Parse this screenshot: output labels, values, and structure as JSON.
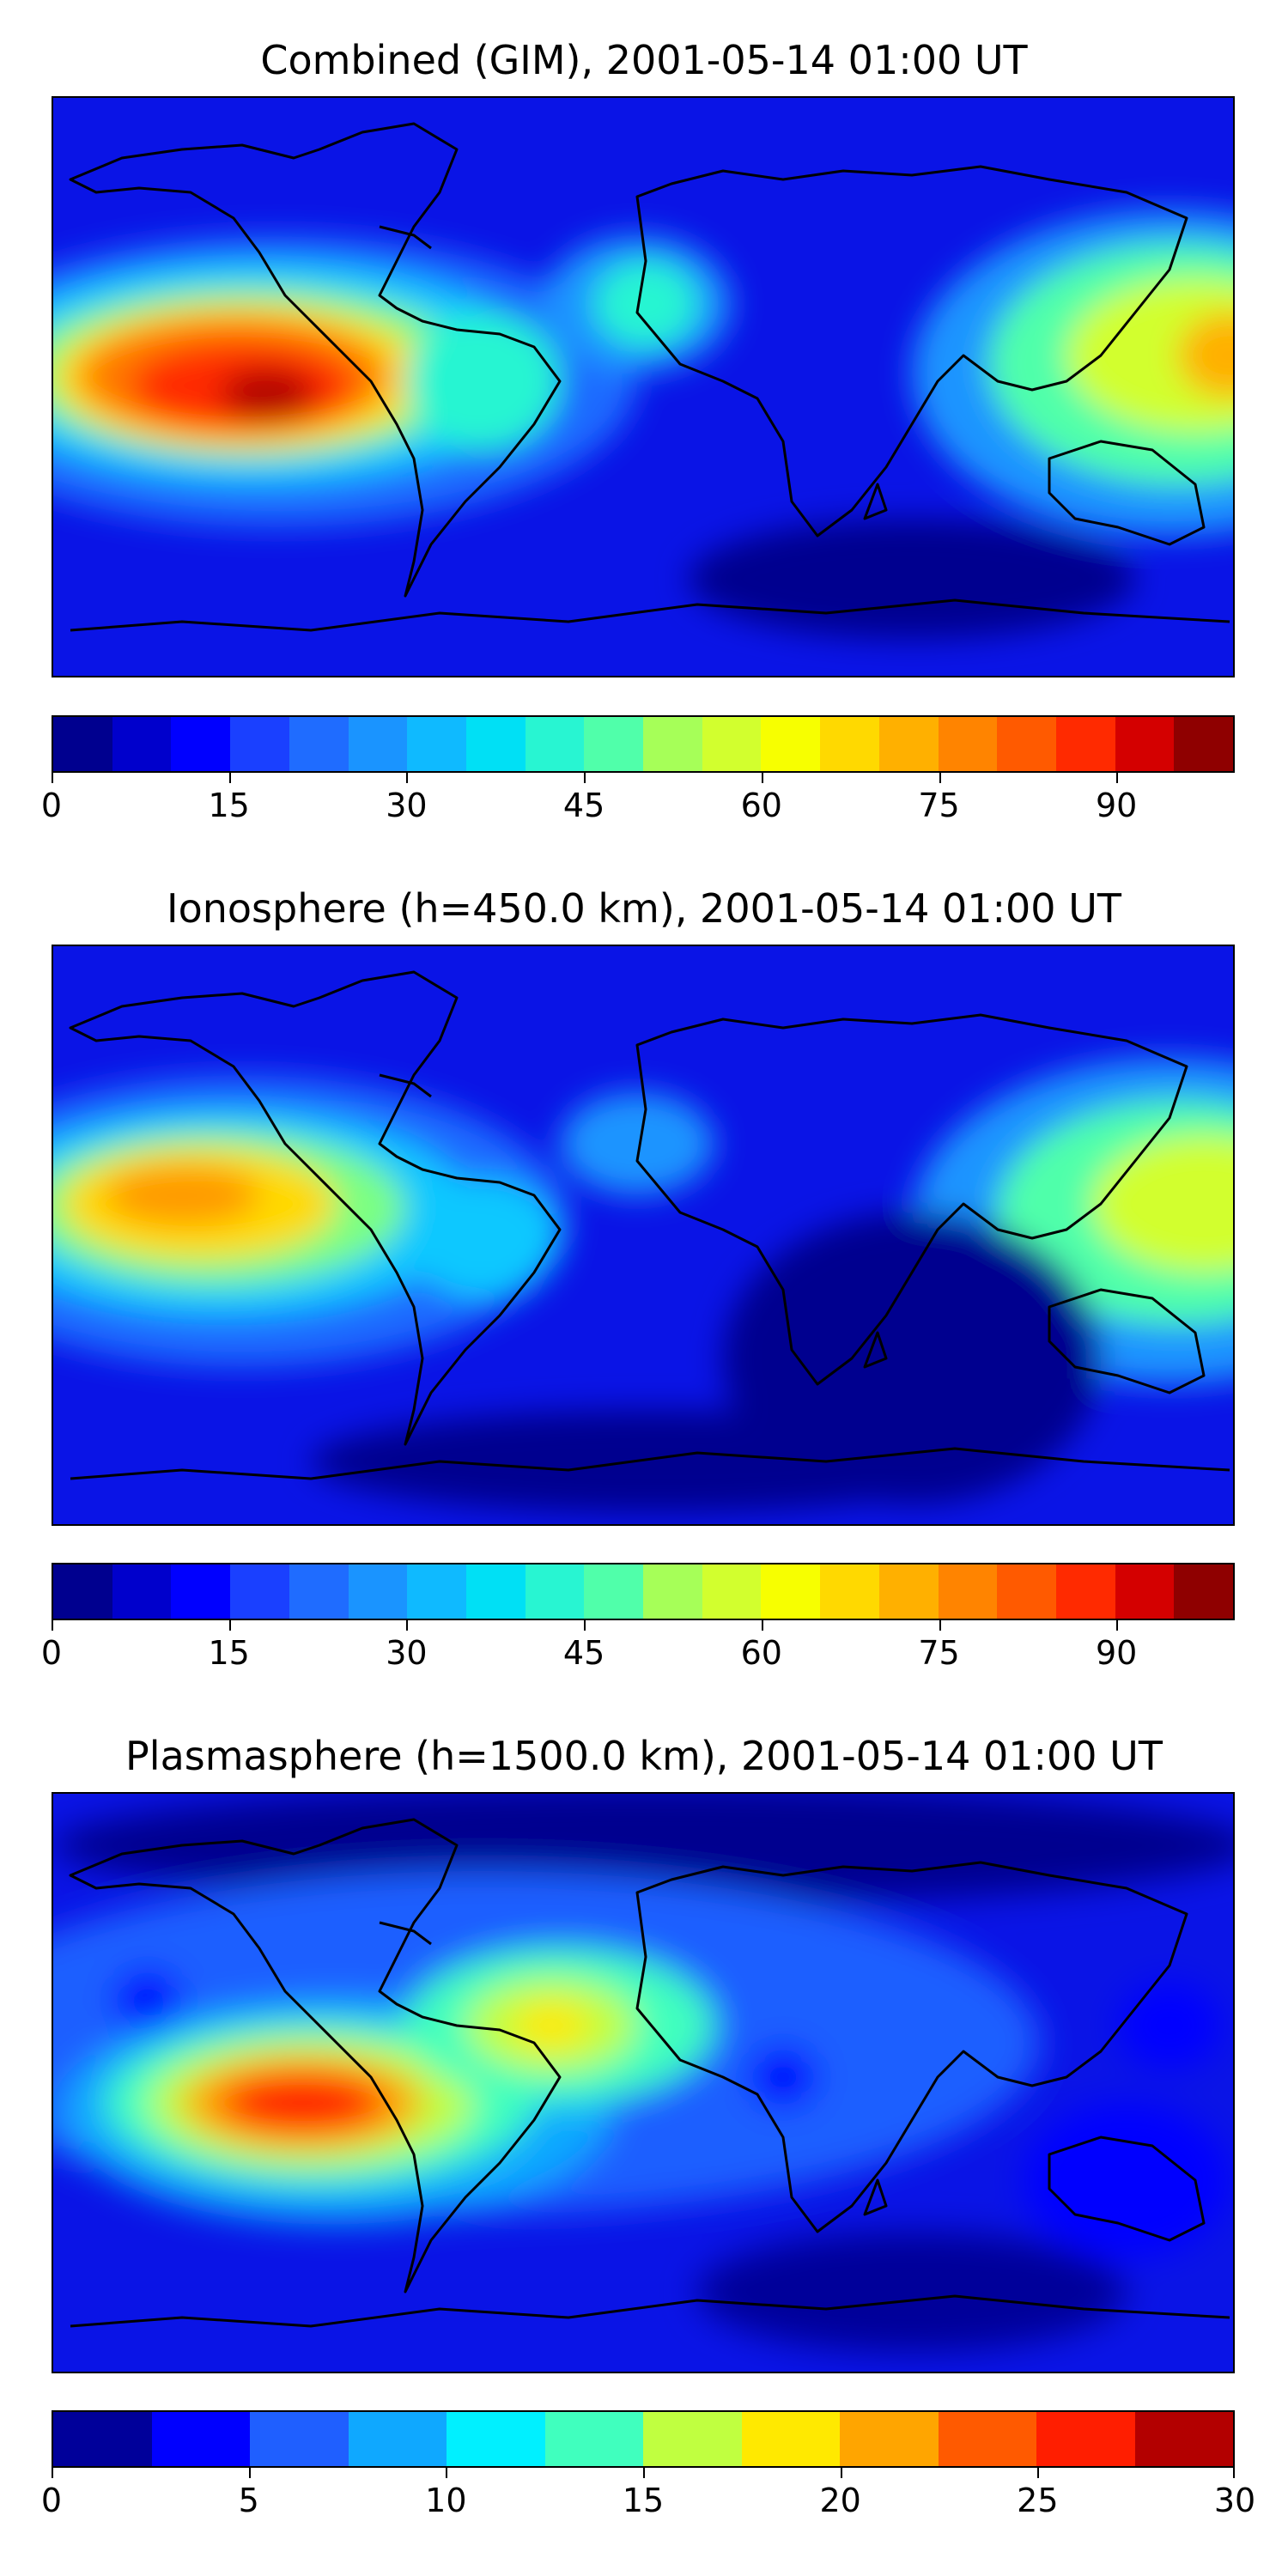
{
  "panels": [
    {
      "title": "Combined (GIM), 2001-05-14 01:00 UT",
      "colorbar": {
        "min": 0,
        "max": 100,
        "tick_labels": [
          "0",
          "15",
          "30",
          "45",
          "60",
          "75",
          "90"
        ],
        "tick_values": [
          0,
          15,
          30,
          45,
          60,
          75,
          90
        ],
        "levels": 20
      }
    },
    {
      "title": "Ionosphere  (h=450.0 km), 2001-05-14 01:00 UT",
      "colorbar": {
        "min": 0,
        "max": 100,
        "tick_labels": [
          "0",
          "15",
          "30",
          "45",
          "60",
          "75",
          "90"
        ],
        "tick_values": [
          0,
          15,
          30,
          45,
          60,
          75,
          90
        ],
        "levels": 20
      }
    },
    {
      "title": "Plasmasphere (h=1500.0 km), 2001-05-14 01:00 UT",
      "colorbar": {
        "min": 0,
        "max": 30,
        "tick_labels": [
          "0",
          "5",
          "10",
          "15",
          "20",
          "25",
          "30"
        ],
        "tick_values": [
          0,
          5,
          10,
          15,
          20,
          25,
          30
        ],
        "levels": 12
      }
    }
  ],
  "palette": {
    "levels20": [
      "#00008f",
      "#0000cc",
      "#0000ff",
      "#1a40ff",
      "#1f6cff",
      "#1a94ff",
      "#0fbaff",
      "#00e0f5",
      "#28f5d2",
      "#50ffaa",
      "#7cff82",
      "#a6ff58",
      "#d2ff2e",
      "#f7ff00",
      "#ffd900",
      "#ffb000",
      "#ff8400",
      "#ff5a00",
      "#ff2a00",
      "#d40000",
      "#8f0000"
    ],
    "levels12": [
      "#00009a",
      "#0000ff",
      "#1f5fff",
      "#0fa8ff",
      "#00f0ff",
      "#40ffbe",
      "#80ff80",
      "#c0ff40",
      "#ffe900",
      "#ffa500",
      "#ff5a00",
      "#ff1e00",
      "#b30000"
    ],
    "coast": "#000000",
    "background_low": "#0a1ae0"
  }
}
